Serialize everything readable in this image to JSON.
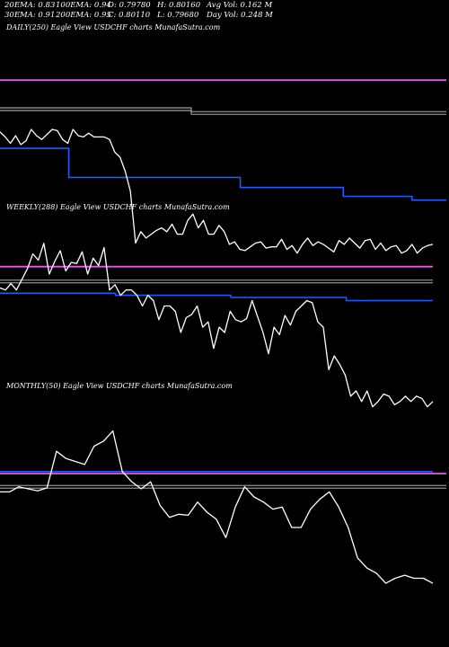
{
  "header": {
    "ema20": "20EMA: 0.83",
    "ema100": "100EMA: 0.94",
    "open": "O: 0.79780",
    "high": "H: 0.80160",
    "avg_vol": "Avg Vol: 0.162  M",
    "ema30": "30EMA: 0.91",
    "ema200": "200EMA: 0.95",
    "close": "C: 0.80110",
    "low": "L: 0.79680",
    "day_vol": "Day Vol: 0.248 M"
  },
  "colors": {
    "background": "#000000",
    "price": "#ffffff",
    "ema_short": "#1e5cff",
    "ema_long": "#ee55ee",
    "ema_mid": "#c8c8c8"
  },
  "chart_data": [
    {
      "type": "line",
      "panel": "daily",
      "title": "DAILY(250) Eagle   View  USDCHF charts MunafaSutra.com",
      "series": [
        {
          "role": "price",
          "values": [
            0.909,
            0.905,
            0.9,
            0.906,
            0.899,
            0.902,
            0.911,
            0.906,
            0.903,
            0.907,
            0.911,
            0.91,
            0.903,
            0.9,
            0.911,
            0.906,
            0.905,
            0.908,
            0.905,
            0.905,
            0.905,
            0.903,
            0.893,
            0.889,
            0.878,
            0.862,
            0.821,
            0.83,
            0.825,
            0.828,
            0.831,
            0.833,
            0.83,
            0.836,
            0.828,
            0.828,
            0.839,
            0.844,
            0.833,
            0.839,
            0.828,
            0.828,
            0.835,
            0.83,
            0.82,
            0.822,
            0.816,
            0.815,
            0.818,
            0.821,
            0.822,
            0.817,
            0.818,
            0.818,
            0.824,
            0.816,
            0.819,
            0.813,
            0.82,
            0.825,
            0.819,
            0.822,
            0.82,
            0.817,
            0.814,
            0.823,
            0.82,
            0.825,
            0.821,
            0.817,
            0.823,
            0.824,
            0.816,
            0.821,
            0.815,
            0.818,
            0.819,
            0.813,
            0.815,
            0.82,
            0.813,
            0.817,
            0.819,
            0.82
          ]
        },
        {
          "role": "ema_short",
          "values": [
            0.896,
            0.896,
            0.873,
            0.873,
            0.873,
            0.873,
            0.873,
            0.865,
            0.865,
            0.865,
            0.858,
            0.858,
            0.855,
            0.855
          ]
        },
        {
          "role": "ema_mid",
          "values": [
            0.927,
            0.927,
            0.927,
            0.924,
            0.924,
            0.924,
            0.924,
            0.924
          ]
        },
        {
          "role": "ema_long",
          "values": [
            0.95,
            0.95
          ]
        }
      ],
      "ylim": [
        0.8,
        0.985
      ]
    },
    {
      "type": "line",
      "panel": "weekly",
      "title": "WEEKLY(288) Eagle   View  USDCHF charts MunafaSutra.com",
      "series": [
        {
          "role": "price",
          "values": [
            1.002,
            1.0,
            1.006,
            1.0,
            1.01,
            1.02,
            1.034,
            1.028,
            1.044,
            1.015,
            1.027,
            1.037,
            1.018,
            1.026,
            1.025,
            1.036,
            1.015,
            1.03,
            1.023,
            1.04,
            1.0,
            1.005,
            0.995,
            1.0,
            1.0,
            0.995,
            0.985,
            0.995,
            0.99,
            0.972,
            0.985,
            0.985,
            0.98,
            0.96,
            0.974,
            0.977,
            0.985,
            0.965,
            0.97,
            0.945,
            0.965,
            0.96,
            0.98,
            0.972,
            0.97,
            0.973,
            0.99,
            0.975,
            0.96,
            0.94,
            0.965,
            0.958,
            0.976,
            0.967,
            0.98,
            0.985,
            0.99,
            0.988,
            0.97,
            0.965,
            0.925,
            0.938,
            0.93,
            0.92,
            0.9,
            0.905,
            0.895,
            0.905,
            0.89,
            0.895,
            0.902,
            0.9,
            0.892,
            0.895,
            0.9,
            0.895,
            0.9,
            0.898,
            0.89,
            0.895
          ]
        },
        {
          "role": "ema_short",
          "values": [
            0.997,
            0.997,
            0.997,
            0.997,
            0.995,
            0.995,
            0.995,
            0.995,
            0.993,
            0.993,
            0.993,
            0.993,
            0.99,
            0.99,
            0.99,
            0.99
          ]
        },
        {
          "role": "ema_mid",
          "values": [
            1.008,
            1.008,
            1.008,
            1.008
          ]
        },
        {
          "role": "ema_long",
          "values": [
            1.022,
            1.022
          ]
        }
      ],
      "ylim": [
        0.85,
        1.07
      ]
    },
    {
      "type": "line",
      "panel": "monthly",
      "title": "MONTHLY(50) Eagle   View  USDCHF charts MunafaSutra.com",
      "series": [
        {
          "role": "price",
          "values": [
            0.935,
            0.935,
            0.94,
            0.938,
            0.936,
            0.939,
            0.975,
            0.968,
            0.965,
            0.962,
            0.98,
            0.985,
            0.995,
            0.955,
            0.945,
            0.938,
            0.945,
            0.922,
            0.91,
            0.913,
            0.912,
            0.925,
            0.915,
            0.908,
            0.89,
            0.92,
            0.94,
            0.93,
            0.925,
            0.918,
            0.92,
            0.9,
            0.9,
            0.918,
            0.928,
            0.935,
            0.92,
            0.9,
            0.87,
            0.86,
            0.855,
            0.845,
            0.85,
            0.853,
            0.85,
            0.85,
            0.845
          ]
        },
        {
          "role": "ema_short",
          "values": [
            0.955,
            0.955
          ]
        },
        {
          "role": "ema_long",
          "values": [
            0.953,
            0.953
          ]
        },
        {
          "role": "ema_mid",
          "values": [
            0.94,
            0.94
          ]
        }
      ],
      "ylim": [
        0.8,
        1.03
      ]
    }
  ]
}
